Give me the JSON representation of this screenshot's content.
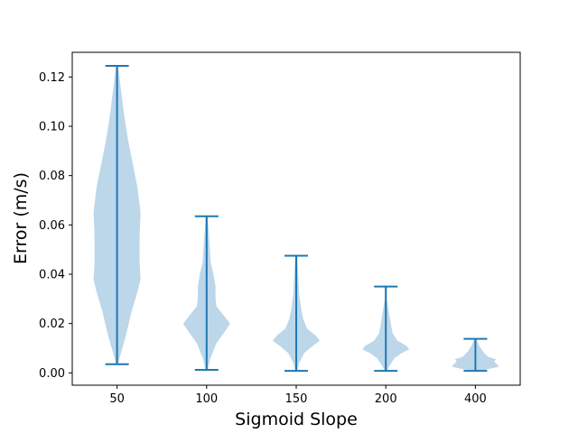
{
  "chart_data": {
    "type": "violin",
    "xlabel": "Sigmoid Slope",
    "ylabel": "Error (m/s)",
    "ylim": [
      -0.005,
      0.13
    ],
    "yticks": [
      "0.00",
      "0.02",
      "0.04",
      "0.06",
      "0.08",
      "0.10",
      "0.12"
    ],
    "ytick_values": [
      0,
      0.02,
      0.04,
      0.06,
      0.08,
      0.1,
      0.12
    ],
    "categories": [
      "50",
      "100",
      "150",
      "200",
      "400"
    ],
    "colors": {
      "body": "#bcd6ea",
      "line": "#1f77b4"
    },
    "violins": [
      {
        "category": "50",
        "min": 0.0035,
        "max": 0.1245,
        "profile": [
          [
            0.0035,
            0.001
          ],
          [
            0.008,
            0.004
          ],
          [
            0.015,
            0.009
          ],
          [
            0.025,
            0.015
          ],
          [
            0.033,
            0.021
          ],
          [
            0.038,
            0.024
          ],
          [
            0.045,
            0.023
          ],
          [
            0.055,
            0.023
          ],
          [
            0.065,
            0.024
          ],
          [
            0.075,
            0.021
          ],
          [
            0.085,
            0.016
          ],
          [
            0.095,
            0.011
          ],
          [
            0.105,
            0.007
          ],
          [
            0.115,
            0.004
          ],
          [
            0.1245,
            0.001
          ]
        ]
      },
      {
        "category": "100",
        "min": 0.0012,
        "max": 0.0635,
        "profile": [
          [
            0.0012,
            0.001
          ],
          [
            0.006,
            0.004
          ],
          [
            0.012,
            0.01
          ],
          [
            0.017,
            0.019
          ],
          [
            0.02,
            0.024
          ],
          [
            0.023,
            0.018
          ],
          [
            0.027,
            0.01
          ],
          [
            0.031,
            0.009
          ],
          [
            0.035,
            0.009
          ],
          [
            0.04,
            0.007
          ],
          [
            0.045,
            0.004
          ],
          [
            0.052,
            0.003
          ],
          [
            0.0635,
            0.001
          ]
        ]
      },
      {
        "category": "150",
        "min": 0.0008,
        "max": 0.0475,
        "profile": [
          [
            0.0008,
            0.001
          ],
          [
            0.004,
            0.003
          ],
          [
            0.008,
            0.008
          ],
          [
            0.011,
            0.017
          ],
          [
            0.013,
            0.024
          ],
          [
            0.015,
            0.02
          ],
          [
            0.018,
            0.011
          ],
          [
            0.022,
            0.007
          ],
          [
            0.026,
            0.005
          ],
          [
            0.032,
            0.003
          ],
          [
            0.04,
            0.002
          ],
          [
            0.0475,
            0.001
          ]
        ]
      },
      {
        "category": "200",
        "min": 0.0008,
        "max": 0.035,
        "profile": [
          [
            0.0008,
            0.001
          ],
          [
            0.003,
            0.004
          ],
          [
            0.006,
            0.009
          ],
          [
            0.008,
            0.016
          ],
          [
            0.0095,
            0.024
          ],
          [
            0.011,
            0.021
          ],
          [
            0.013,
            0.012
          ],
          [
            0.016,
            0.007
          ],
          [
            0.02,
            0.005
          ],
          [
            0.025,
            0.003
          ],
          [
            0.03,
            0.001
          ],
          [
            0.035,
            0.001
          ]
        ]
      },
      {
        "category": "400",
        "min": 0.0008,
        "max": 0.0138,
        "profile": [
          [
            0.0008,
            0.004
          ],
          [
            0.0015,
            0.013
          ],
          [
            0.0025,
            0.024
          ],
          [
            0.0035,
            0.022
          ],
          [
            0.0045,
            0.019
          ],
          [
            0.0055,
            0.021
          ],
          [
            0.0065,
            0.013
          ],
          [
            0.0085,
            0.008
          ],
          [
            0.011,
            0.004
          ],
          [
            0.0138,
            0.001
          ]
        ]
      }
    ]
  }
}
